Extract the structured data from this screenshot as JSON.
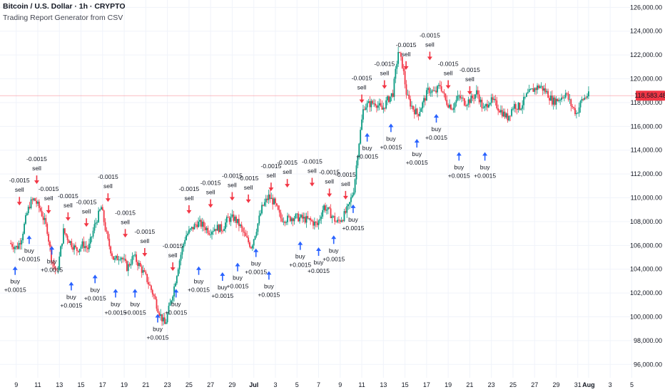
{
  "header": {
    "title": "Bitcoin / U.S. Dollar · 1h · CRYPTO",
    "subtitle": "Trading Report Generator from CSV"
  },
  "chart_data": {
    "type": "candlestick",
    "y_axis_position": "right",
    "ylim": [
      95000,
      126500
    ],
    "yticks": [
      "126,000.00",
      "124,000.00",
      "122,000.00",
      "120,000.00",
      "118,000.00",
      "116,000.00",
      "114,000.00",
      "112,000.00",
      "110,000.00",
      "108,000.00",
      "106,000.00",
      "104,000.00",
      "102,000.00",
      "100,000.00",
      "98,000.00",
      "96,000.00"
    ],
    "ytick_values": [
      126000,
      124000,
      122000,
      120000,
      118000,
      116000,
      114000,
      112000,
      110000,
      108000,
      106000,
      104000,
      102000,
      100000,
      98000,
      96000
    ],
    "x_range_days": [
      8.5,
      36.3
    ],
    "xticks": [
      {
        "label": "9",
        "day": 9
      },
      {
        "label": "11",
        "day": 11
      },
      {
        "label": "13",
        "day": 13
      },
      {
        "label": "15",
        "day": 15
      },
      {
        "label": "17",
        "day": 17
      },
      {
        "label": "19",
        "day": 19
      },
      {
        "label": "21",
        "day": 21
      },
      {
        "label": "23",
        "day": 23
      },
      {
        "label": "25",
        "day": 25
      },
      {
        "label": "27",
        "day": 27
      },
      {
        "label": "29",
        "day": 29
      },
      {
        "label": "Jul",
        "day": 31
      },
      {
        "label": "3",
        "day": 33
      },
      {
        "label": "5",
        "day": 35
      },
      {
        "label": "7",
        "day": 37
      },
      {
        "label": "9",
        "day": 39
      },
      {
        "label": "11",
        "day": 41
      },
      {
        "label": "13",
        "day": 43
      },
      {
        "label": "15",
        "day": 45
      },
      {
        "label": "17",
        "day": 47
      },
      {
        "label": "19",
        "day": 49
      },
      {
        "label": "21",
        "day": 51
      },
      {
        "label": "23",
        "day": 53
      },
      {
        "label": "25",
        "day": 55
      },
      {
        "label": "27",
        "day": 57
      },
      {
        "label": "29",
        "day": 59
      },
      {
        "label": "31",
        "day": 61
      },
      {
        "label": "Aug",
        "day": 62
      },
      {
        "label": "3",
        "day": 64
      },
      {
        "label": "5",
        "day": 66
      }
    ],
    "current_price": 118583.48,
    "current_price_label": "118,583.48",
    "price_path": [
      [
        8.5,
        106200
      ],
      [
        9.2,
        105800
      ],
      [
        9.6,
        106600
      ],
      [
        10.1,
        108600
      ],
      [
        10.4,
        109500
      ],
      [
        10.8,
        109900
      ],
      [
        11.4,
        108900
      ],
      [
        12.0,
        107300
      ],
      [
        12.4,
        104800
      ],
      [
        12.9,
        103600
      ],
      [
        13.5,
        107200
      ],
      [
        14.1,
        106300
      ],
      [
        14.7,
        105600
      ],
      [
        15.3,
        106100
      ],
      [
        15.8,
        105700
      ],
      [
        16.4,
        107700
      ],
      [
        17.0,
        109200
      ],
      [
        17.6,
        106400
      ],
      [
        18.2,
        104700
      ],
      [
        18.8,
        105200
      ],
      [
        19.4,
        104100
      ],
      [
        20.0,
        105100
      ],
      [
        20.6,
        104200
      ],
      [
        21.2,
        103200
      ],
      [
        21.8,
        101900
      ],
      [
        22.4,
        100300
      ],
      [
        22.9,
        99300
      ],
      [
        23.3,
        100800
      ],
      [
        23.7,
        102300
      ],
      [
        24.2,
        104600
      ],
      [
        24.8,
        106800
      ],
      [
        25.3,
        107300
      ],
      [
        25.9,
        107900
      ],
      [
        26.4,
        107700
      ],
      [
        27.0,
        107200
      ],
      [
        27.6,
        107500
      ],
      [
        28.2,
        107400
      ],
      [
        28.7,
        108200
      ],
      [
        29.3,
        108300
      ],
      [
        29.8,
        107700
      ],
      [
        30.4,
        106600
      ],
      [
        30.9,
        105900
      ],
      [
        31.4,
        107500
      ],
      [
        31.9,
        109200
      ],
      [
        32.5,
        110100
      ],
      [
        33.0,
        109600
      ],
      [
        33.6,
        108300
      ],
      [
        34.2,
        108200
      ],
      [
        34.8,
        108400
      ],
      [
        35.4,
        108300
      ],
      [
        36.3,
        108100
      ],
      [
        37.0,
        107700
      ],
      [
        37.6,
        109300
      ],
      [
        38.2,
        108700
      ],
      [
        38.8,
        107900
      ],
      [
        39.4,
        108400
      ],
      [
        39.9,
        109200
      ],
      [
        40.4,
        110800
      ],
      [
        40.8,
        114200
      ],
      [
        41.3,
        117700
      ],
      [
        41.9,
        117900
      ],
      [
        42.4,
        118000
      ],
      [
        43.0,
        117400
      ],
      [
        43.5,
        118200
      ],
      [
        44.0,
        118800
      ],
      [
        44.5,
        122300
      ],
      [
        44.9,
        121100
      ],
      [
        45.3,
        118500
      ],
      [
        45.8,
        117600
      ],
      [
        46.3,
        117000
      ],
      [
        46.8,
        118000
      ],
      [
        47.3,
        119100
      ],
      [
        47.9,
        118800
      ],
      [
        48.4,
        119500
      ],
      [
        48.9,
        118100
      ],
      [
        49.5,
        117600
      ],
      [
        50.1,
        118500
      ],
      [
        50.7,
        118000
      ],
      [
        51.3,
        118300
      ],
      [
        51.8,
        118900
      ],
      [
        52.4,
        117300
      ],
      [
        52.9,
        118200
      ],
      [
        53.4,
        118000
      ],
      [
        54.0,
        117300
      ],
      [
        54.6,
        116700
      ],
      [
        55.2,
        117800
      ],
      [
        55.8,
        117600
      ],
      [
        56.4,
        118600
      ],
      [
        57.0,
        119100
      ],
      [
        57.6,
        119400
      ],
      [
        58.2,
        118900
      ],
      [
        58.8,
        118100
      ],
      [
        59.4,
        118300
      ],
      [
        60.0,
        118800
      ],
      [
        60.5,
        117800
      ],
      [
        61.0,
        117100
      ],
      [
        61.5,
        118200
      ],
      [
        62.0,
        118600
      ]
    ],
    "annotations": [
      {
        "type": "sell",
        "day": 10.9,
        "price": 110800,
        "qty": "-0.0015",
        "label": "sell"
      },
      {
        "type": "sell",
        "day": 9.3,
        "price": 109000,
        "qty": "-0.0015",
        "label": "sell"
      },
      {
        "type": "buy",
        "day": 8.9,
        "price": 104600,
        "qty": "+0.0015",
        "label": "buy"
      },
      {
        "type": "buy",
        "day": 10.2,
        "price": 107200,
        "qty": "+0.0015",
        "label": "buy"
      },
      {
        "type": "sell",
        "day": 12.0,
        "price": 108300,
        "qty": "-0.0015",
        "label": "sell"
      },
      {
        "type": "buy",
        "day": 12.3,
        "price": 106300,
        "qty": "+0.0015",
        "label": "buy"
      },
      {
        "type": "sell",
        "day": 13.8,
        "price": 107700,
        "qty": "-0.0015",
        "label": "sell"
      },
      {
        "type": "buy",
        "day": 14.1,
        "price": 103300,
        "qty": "+0.0015",
        "label": "buy"
      },
      {
        "type": "sell",
        "day": 15.5,
        "price": 107200,
        "qty": "-0.0015",
        "label": "sell"
      },
      {
        "type": "buy",
        "day": 16.3,
        "price": 103900,
        "qty": "+0.0015",
        "label": "buy"
      },
      {
        "type": "sell",
        "day": 17.5,
        "price": 109300,
        "qty": "-0.0015",
        "label": "sell"
      },
      {
        "type": "buy",
        "day": 18.2,
        "price": 102700,
        "qty": "+0.0015",
        "label": "buy"
      },
      {
        "type": "sell",
        "day": 19.1,
        "price": 106300,
        "qty": "-0.0015",
        "label": "sell"
      },
      {
        "type": "buy",
        "day": 20.0,
        "price": 102700,
        "qty": "+0.0015",
        "label": "buy"
      },
      {
        "type": "sell",
        "day": 20.9,
        "price": 104700,
        "qty": "-0.0015",
        "label": "sell"
      },
      {
        "type": "buy",
        "day": 22.1,
        "price": 100600,
        "qty": "+0.0015",
        "label": "buy"
      },
      {
        "type": "sell",
        "day": 23.5,
        "price": 103500,
        "qty": "-0.0015",
        "label": "sell"
      },
      {
        "type": "buy",
        "day": 23.8,
        "price": 102700,
        "qty": "+0.0015",
        "label": "buy"
      },
      {
        "type": "sell",
        "day": 25.0,
        "price": 108300,
        "qty": "-0.0015",
        "label": "sell"
      },
      {
        "type": "buy",
        "day": 25.9,
        "price": 104600,
        "qty": "+0.0015",
        "label": "buy"
      },
      {
        "type": "sell",
        "day": 27.0,
        "price": 108800,
        "qty": "-0.0015",
        "label": "sell"
      },
      {
        "type": "buy",
        "day": 28.1,
        "price": 104100,
        "qty": "+0.0015",
        "label": "buy"
      },
      {
        "type": "sell",
        "day": 29.0,
        "price": 109400,
        "qty": "-0.0015",
        "label": "sell"
      },
      {
        "type": "buy",
        "day": 29.5,
        "price": 104900,
        "qty": "+0.0015",
        "label": "buy"
      },
      {
        "type": "sell",
        "day": 30.5,
        "price": 109200,
        "qty": "-0.0015",
        "label": "sell"
      },
      {
        "type": "buy",
        "day": 31.2,
        "price": 106100,
        "qty": "+0.0015",
        "label": "buy"
      },
      {
        "type": "sell",
        "day": 32.6,
        "price": 110200,
        "qty": "-0.0015",
        "label": "sell"
      },
      {
        "type": "buy",
        "day": 32.4,
        "price": 104200,
        "qty": "+0.0015",
        "label": "buy"
      },
      {
        "type": "sell",
        "day": 34.1,
        "price": 110500,
        "qty": "-0.0015",
        "label": "sell"
      },
      {
        "type": "buy",
        "day": 35.3,
        "price": 106700,
        "qty": "+0.0015",
        "label": "buy"
      },
      {
        "type": "sell",
        "day": 36.4,
        "price": 110600,
        "qty": "-0.0015",
        "label": "sell"
      },
      {
        "type": "buy",
        "day": 37.0,
        "price": 106200,
        "qty": "+0.0015",
        "label": "buy"
      },
      {
        "type": "sell",
        "day": 38.0,
        "price": 109700,
        "qty": "-0.0015",
        "label": "sell"
      },
      {
        "type": "buy",
        "day": 38.4,
        "price": 107200,
        "qty": "+0.0015",
        "label": "buy"
      },
      {
        "type": "sell",
        "day": 39.5,
        "price": 109500,
        "qty": "-0.0015",
        "label": "sell"
      },
      {
        "type": "buy",
        "day": 40.2,
        "price": 109800,
        "qty": "+0.0015",
        "label": "buy"
      },
      {
        "type": "sell",
        "day": 41.0,
        "price": 117600,
        "qty": "-0.0015",
        "label": "sell"
      },
      {
        "type": "buy",
        "day": 41.5,
        "price": 115800,
        "qty": "+0.0015",
        "label": "buy"
      },
      {
        "type": "sell",
        "day": 43.1,
        "price": 118800,
        "qty": "-0.0015",
        "label": "sell"
      },
      {
        "type": "buy",
        "day": 43.7,
        "price": 116600,
        "qty": "+0.0015",
        "label": "buy"
      },
      {
        "type": "sell",
        "day": 45.1,
        "price": 120400,
        "qty": "-0.0015",
        "label": "sell"
      },
      {
        "type": "buy",
        "day": 46.1,
        "price": 115300,
        "qty": "+0.0015",
        "label": "buy"
      },
      {
        "type": "sell",
        "day": 47.3,
        "price": 121200,
        "qty": "-0.0015",
        "label": "sell"
      },
      {
        "type": "buy",
        "day": 47.9,
        "price": 117400,
        "qty": "+0.0015",
        "label": "buy"
      },
      {
        "type": "sell",
        "day": 49.0,
        "price": 118800,
        "qty": "-0.0015",
        "label": "sell"
      },
      {
        "type": "buy",
        "day": 50.0,
        "price": 114200,
        "qty": "+0.0015",
        "label": "buy"
      },
      {
        "type": "sell",
        "day": 51.0,
        "price": 118300,
        "qty": "-0.0015",
        "label": "sell"
      },
      {
        "type": "buy",
        "day": 52.4,
        "price": 114200,
        "qty": "+0.0015",
        "label": "buy"
      }
    ]
  }
}
